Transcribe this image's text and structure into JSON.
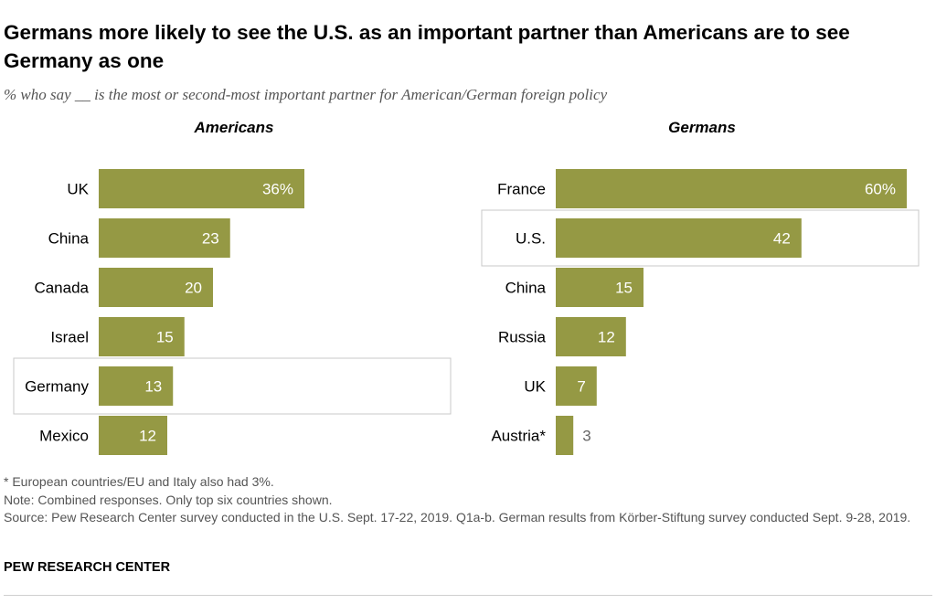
{
  "title": "Germans more likely to see the U.S. as an important partner than Americans are to see Germany as one",
  "subtitle": "% who say __ is the most or second-most important partner for American/German foreign policy",
  "colors": {
    "bar": "#959944",
    "highlight_border": "#c8c8c8",
    "label_inside": "#ffffff",
    "label_outside": "#666666"
  },
  "chart_data": [
    {
      "type": "bar",
      "orientation": "horizontal",
      "title": "Americans",
      "categories": [
        "UK",
        "China",
        "Canada",
        "Israel",
        "Germany",
        "Mexico"
      ],
      "values": [
        36,
        23,
        20,
        15,
        13,
        12
      ],
      "value_labels": [
        "36%",
        "23",
        "20",
        "15",
        "13",
        "12"
      ],
      "highlight": "Germany",
      "xlim": [
        0,
        100
      ]
    },
    {
      "type": "bar",
      "orientation": "horizontal",
      "title": "Germans",
      "categories": [
        "France",
        "U.S.",
        "China",
        "Russia",
        "UK",
        "Austria*"
      ],
      "values": [
        60,
        42,
        15,
        12,
        7,
        3
      ],
      "value_labels": [
        "60%",
        "42",
        "15",
        "12",
        "7",
        "3"
      ],
      "highlight": "U.S.",
      "xlim": [
        0,
        100
      ]
    }
  ],
  "notes": {
    "footnote": "* European countries/EU and Italy also had 3%.",
    "note": "Note: Combined responses. Only top six countries shown.",
    "source": "Source: Pew Research Center survey conducted in the U.S. Sept. 17-22, 2019. Q1a-b. German results from Körber-Stiftung survey conducted Sept. 9-28, 2019."
  },
  "brand": "PEW RESEARCH CENTER"
}
